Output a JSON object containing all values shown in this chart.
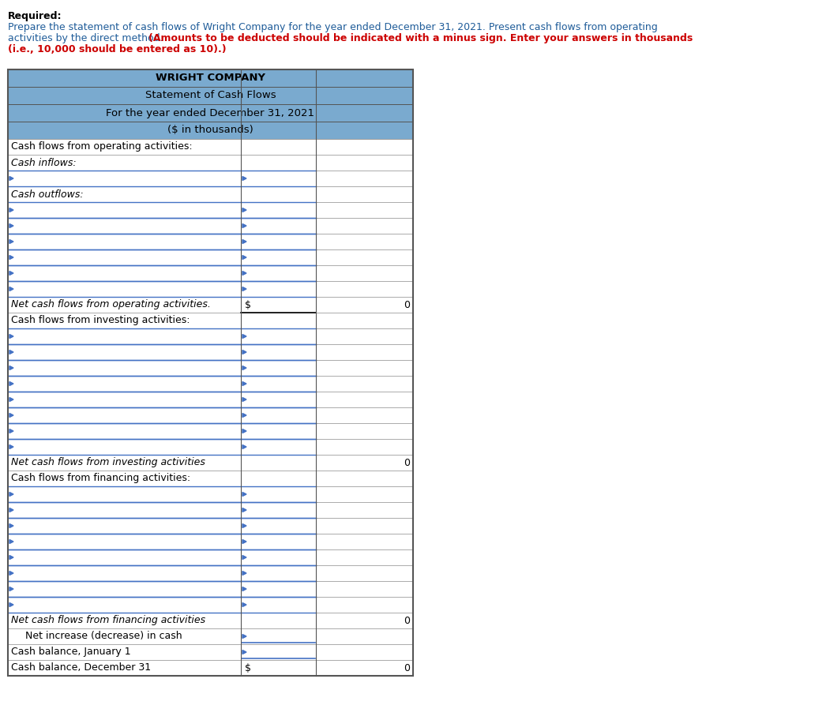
{
  "title_lines": [
    "WRIGHT COMPANY",
    "Statement of Cash Flows",
    "For the year ended December 31, 2021",
    "($ in thousands)"
  ],
  "header_bg": "#7aaacf",
  "header_bold": [
    true,
    false,
    false,
    false
  ],
  "rows": [
    {
      "label": "Cash flows from operating activities:",
      "col1": "",
      "col2": "",
      "type": "section_header"
    },
    {
      "label": "Cash inflows:",
      "col1": "",
      "col2": "",
      "type": "subsection"
    },
    {
      "label": "",
      "col1": "",
      "col2": "",
      "type": "input"
    },
    {
      "label": "Cash outflows:",
      "col1": "",
      "col2": "",
      "type": "subsection"
    },
    {
      "label": "",
      "col1": "",
      "col2": "",
      "type": "input"
    },
    {
      "label": "",
      "col1": "",
      "col2": "",
      "type": "input"
    },
    {
      "label": "",
      "col1": "",
      "col2": "",
      "type": "input"
    },
    {
      "label": "",
      "col1": "",
      "col2": "",
      "type": "input"
    },
    {
      "label": "",
      "col1": "",
      "col2": "",
      "type": "input"
    },
    {
      "label": "",
      "col1": "",
      "col2": "",
      "type": "input"
    },
    {
      "label": "Net cash flows from operating activities.",
      "col1": "$",
      "col2": "0",
      "type": "total"
    },
    {
      "label": "Cash flows from investing activities:",
      "col1": "",
      "col2": "",
      "type": "section_header"
    },
    {
      "label": "",
      "col1": "",
      "col2": "",
      "type": "input"
    },
    {
      "label": "",
      "col1": "",
      "col2": "",
      "type": "input"
    },
    {
      "label": "",
      "col1": "",
      "col2": "",
      "type": "input"
    },
    {
      "label": "",
      "col1": "",
      "col2": "",
      "type": "input"
    },
    {
      "label": "",
      "col1": "",
      "col2": "",
      "type": "input"
    },
    {
      "label": "",
      "col1": "",
      "col2": "",
      "type": "input"
    },
    {
      "label": "",
      "col1": "",
      "col2": "",
      "type": "input"
    },
    {
      "label": "",
      "col1": "",
      "col2": "",
      "type": "input"
    },
    {
      "label": "Net cash flows from investing activities",
      "col1": "",
      "col2": "0",
      "type": "total2"
    },
    {
      "label": "Cash flows from financing activities:",
      "col1": "",
      "col2": "",
      "type": "section_header"
    },
    {
      "label": "",
      "col1": "",
      "col2": "",
      "type": "input"
    },
    {
      "label": "",
      "col1": "",
      "col2": "",
      "type": "input"
    },
    {
      "label": "",
      "col1": "",
      "col2": "",
      "type": "input"
    },
    {
      "label": "",
      "col1": "",
      "col2": "",
      "type": "input"
    },
    {
      "label": "",
      "col1": "",
      "col2": "",
      "type": "input"
    },
    {
      "label": "",
      "col1": "",
      "col2": "",
      "type": "input"
    },
    {
      "label": "",
      "col1": "",
      "col2": "",
      "type": "input"
    },
    {
      "label": "",
      "col1": "",
      "col2": "",
      "type": "input"
    },
    {
      "label": "Net cash flows from financing activities",
      "col1": "",
      "col2": "0",
      "type": "total2"
    },
    {
      "label": "Net increase (decrease) in cash",
      "col1": "",
      "col2": "",
      "type": "subtotal"
    },
    {
      "label": "Cash balance, January 1",
      "col1": "",
      "col2": "",
      "type": "cash_balance"
    },
    {
      "label": "Cash balance, December 31",
      "col1": "$",
      "col2": "0",
      "type": "total_final"
    }
  ],
  "blue": "#4472c4",
  "dark_border": "#555555",
  "light_border": "#999999",
  "fig_width": 10.32,
  "fig_height": 8.93,
  "dpi": 100
}
